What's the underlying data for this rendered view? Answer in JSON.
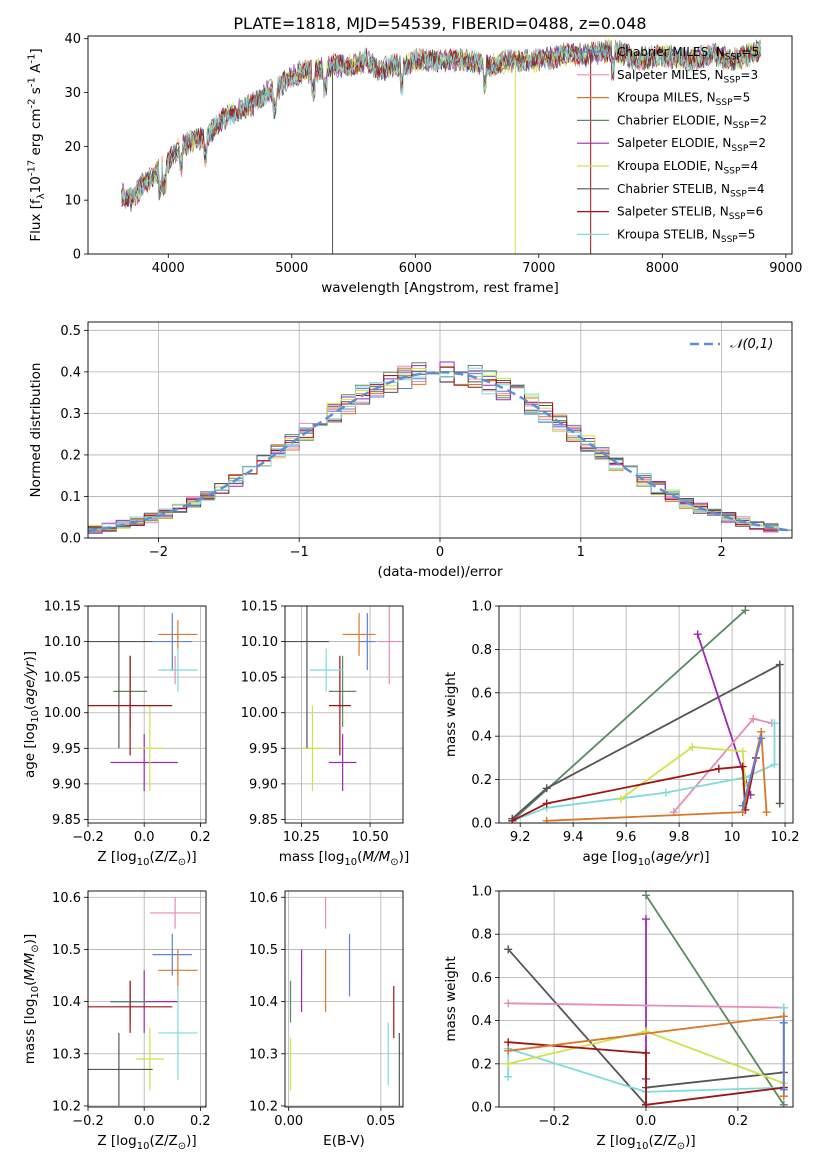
{
  "figure": {
    "title": "PLATE=1818, MJD=54539, FIBERID=0488, z=0.048",
    "colors": {
      "chabrier_miles": "#5b82d6",
      "salpeter_miles": "#e58cb8",
      "kroupa_miles": "#d9782a",
      "chabrier_elodie": "#5a8a62",
      "salpeter_elodie": "#9a2bb0",
      "kroupa_elodie": "#cfe24a",
      "chabrier_stelib": "#555555",
      "salpeter_stelib": "#a01414",
      "kroupa_stelib": "#7fdbdb",
      "normal": "#5b8fd6"
    }
  },
  "chart_data": [
    {
      "id": "spectrum",
      "type": "line",
      "title": "PLATE=1818, MJD=54539, FIBERID=0488, z=0.048",
      "xlabel": "wavelength [Angstrom, rest frame]",
      "ylabel": "Flux [f$_\\lambda$10$^{-17}$ erg cm$^{-2}$ s$^{-1}$ A$^{-1}$]",
      "xlim": [
        3350,
        9050
      ],
      "ylim": [
        0,
        40.5
      ],
      "xticks": [
        4000,
        5000,
        6000,
        7000,
        8000,
        9000
      ],
      "yticks": [
        0,
        10,
        20,
        30,
        40
      ],
      "grid": false,
      "legend_position": "right",
      "x": [
        3620,
        3700,
        3800,
        3900,
        4000,
        4100,
        4200,
        4300,
        4400,
        4500,
        4600,
        4700,
        4800,
        4900,
        5000,
        5100,
        5200,
        5300,
        5400,
        5500,
        5600,
        5700,
        5800,
        5900,
        6000,
        6200,
        6400,
        6600,
        6800,
        7000,
        7200,
        7400,
        7600,
        7800,
        8000,
        8200,
        8400,
        8600,
        8800
      ],
      "y": [
        11,
        10,
        13,
        15,
        17,
        20,
        21,
        22,
        24,
        26,
        27,
        28,
        30,
        31,
        33,
        34,
        34,
        35,
        35,
        35,
        36,
        34,
        35,
        35,
        36,
        36,
        36,
        35,
        36,
        36,
        37,
        37,
        38,
        36,
        37,
        36,
        37,
        36,
        38
      ],
      "series": [
        {
          "name": "Chabrier MILES, N$_{SSP}$=5",
          "color": "#5b82d6"
        },
        {
          "name": "Salpeter MILES, N$_{SSP}$=3",
          "color": "#e58cb8"
        },
        {
          "name": "Kroupa MILES, N$_{SSP}$=5",
          "color": "#d9782a"
        },
        {
          "name": "Chabrier ELODIE, N$_{SSP}$=2",
          "color": "#5a8a62"
        },
        {
          "name": "Salpeter ELODIE, N$_{SSP}$=2",
          "color": "#9a2bb0"
        },
        {
          "name": "Kroupa ELODIE, N$_{SSP}$=4",
          "color": "#cfe24a"
        },
        {
          "name": "Chabrier STELIB, N$_{SSP}$=4",
          "color": "#555555"
        },
        {
          "name": "Salpeter STELIB, N$_{SSP}$=6",
          "color": "#a01414"
        },
        {
          "name": "Kroupa STELIB, N$_{SSP}$=5",
          "color": "#7fdbdb"
        }
      ],
      "dropouts": [
        {
          "x": 5330,
          "color": "#555555"
        },
        {
          "x": 6810,
          "color": "#cfe24a"
        },
        {
          "x": 7420,
          "color": "#a01414"
        }
      ]
    },
    {
      "id": "residuals",
      "type": "line",
      "xlabel": "(data-model)/error",
      "ylabel": "Normed distribution",
      "xlim": [
        -2.5,
        2.5
      ],
      "ylim": [
        0,
        0.52
      ],
      "xticks": [
        -2,
        -1,
        0,
        1,
        2
      ],
      "yticks": [
        0.0,
        0.1,
        0.2,
        0.3,
        0.4,
        0.5
      ],
      "grid": true,
      "legend_position": "top-right",
      "legend": "$\\mathcal{N}(0,1)$",
      "bin_width": 0.1,
      "noise_amplitude": 0.025
    },
    {
      "id": "age_vs_Z",
      "type": "scatter",
      "xlabel": "Z [log$_{10}$(Z/Z$_\\odot$)]",
      "ylabel": "age  [log$_{10}$($age/yr$)]",
      "xlim": [
        -0.2,
        0.22
      ],
      "ylim": [
        9.845,
        10.15
      ],
      "xticks": [
        -0.2,
        0.0,
        0.2
      ],
      "xticklabels": [
        "−0.2",
        "0.0",
        "0.2"
      ],
      "yticks": [
        9.85,
        9.9,
        9.95,
        10.0,
        10.05,
        10.1,
        10.15
      ],
      "grid": true,
      "points": [
        {
          "x": 0.1,
          "y": 10.1,
          "xerr": 0.07,
          "yerr": 0.04,
          "color": "#5b82d6"
        },
        {
          "x": 0.11,
          "y": 10.06,
          "xerr": 0.02,
          "yerr": 0.02,
          "color": "#e58cb8"
        },
        {
          "x": 0.12,
          "y": 10.11,
          "xerr": 0.07,
          "yerr": 0.02,
          "color": "#d9782a"
        },
        {
          "x": -0.05,
          "y": 10.03,
          "xerr": 0.06,
          "yerr": 0.05,
          "color": "#5a8a62"
        },
        {
          "x": 0.0,
          "y": 9.93,
          "xerr": 0.12,
          "yerr": 0.04,
          "color": "#9a2bb0"
        },
        {
          "x": 0.02,
          "y": 9.95,
          "xerr": 0.05,
          "yerr": 0.06,
          "color": "#cfe24a"
        },
        {
          "x": -0.09,
          "y": 10.1,
          "xerr": 0.12,
          "yerr": 0.15,
          "color": "#555555"
        },
        {
          "x": -0.05,
          "y": 10.01,
          "xerr": 0.15,
          "yerr": 0.07,
          "color": "#a01414"
        },
        {
          "x": 0.12,
          "y": 10.06,
          "xerr": 0.07,
          "yerr": 0.03,
          "color": "#7fdbdb"
        }
      ]
    },
    {
      "id": "age_vs_mass",
      "type": "scatter",
      "xlabel": "mass [log$_{10}$($M/M_\\odot$)]",
      "ylabel": "",
      "xlim": [
        10.19,
        10.62
      ],
      "ylim": [
        9.845,
        10.15
      ],
      "xticks": [
        10.25,
        10.5
      ],
      "xticklabels": [
        "10.25",
        "10.50"
      ],
      "yticks": [
        9.85,
        9.9,
        9.95,
        10.0,
        10.05,
        10.1,
        10.15
      ],
      "grid": true,
      "points": [
        {
          "x": 10.49,
          "y": 10.1,
          "xerr": 0.03,
          "yerr": 0.04,
          "color": "#5b82d6"
        },
        {
          "x": 10.57,
          "y": 10.1,
          "xerr": 0.04,
          "yerr": 0.06,
          "color": "#e58cb8"
        },
        {
          "x": 10.46,
          "y": 10.11,
          "xerr": 0.06,
          "yerr": 0.03,
          "color": "#d9782a"
        },
        {
          "x": 10.4,
          "y": 10.03,
          "xerr": 0.05,
          "yerr": 0.05,
          "color": "#5a8a62"
        },
        {
          "x": 10.4,
          "y": 9.93,
          "xerr": 0.05,
          "yerr": 0.04,
          "color": "#9a2bb0"
        },
        {
          "x": 10.29,
          "y": 9.95,
          "xerr": 0.05,
          "yerr": 0.06,
          "color": "#cfe24a"
        },
        {
          "x": 10.27,
          "y": 10.1,
          "xerr": 0.08,
          "yerr": 0.15,
          "color": "#555555"
        },
        {
          "x": 10.39,
          "y": 10.01,
          "xerr": 0.04,
          "yerr": 0.07,
          "color": "#a01414"
        },
        {
          "x": 10.34,
          "y": 10.06,
          "xerr": 0.06,
          "yerr": 0.03,
          "color": "#7fdbdb"
        }
      ]
    },
    {
      "id": "massweight_vs_age",
      "type": "line",
      "xlabel": "age  [log$_{10}$($age/yr$)]",
      "ylabel": "mass weight",
      "xlim": [
        9.12,
        10.23
      ],
      "ylim": [
        0,
        1.0
      ],
      "xticks": [
        9.2,
        9.4,
        9.6,
        9.8,
        10.0,
        10.2
      ],
      "yticks": [
        0.0,
        0.2,
        0.4,
        0.6,
        0.8,
        1.0
      ],
      "grid": true,
      "series": [
        {
          "color": "#5a8a62",
          "points": [
            [
              9.17,
              0.01
            ],
            [
              10.05,
              0.98
            ]
          ]
        },
        {
          "color": "#555555",
          "points": [
            [
              9.17,
              0.02
            ],
            [
              9.3,
              0.16
            ],
            [
              10.18,
              0.73
            ],
            [
              10.18,
              0.09
            ]
          ]
        },
        {
          "color": "#9a2bb0",
          "points": [
            [
              9.87,
              0.87
            ],
            [
              10.07,
              0.13
            ]
          ]
        },
        {
          "color": "#e58cb8",
          "points": [
            [
              9.78,
              0.05
            ],
            [
              10.08,
              0.48
            ],
            [
              10.15,
              0.46
            ]
          ]
        },
        {
          "color": "#7fdbdb",
          "points": [
            [
              9.17,
              0.01
            ],
            [
              9.3,
              0.07
            ],
            [
              9.75,
              0.14
            ],
            [
              10.05,
              0.21
            ],
            [
              10.16,
              0.27
            ],
            [
              10.16,
              0.46
            ]
          ]
        },
        {
          "color": "#cfe24a",
          "points": [
            [
              9.58,
              0.11
            ],
            [
              9.85,
              0.35
            ],
            [
              10.04,
              0.33
            ],
            [
              10.05,
              0.18
            ]
          ]
        },
        {
          "color": "#a01414",
          "points": [
            [
              9.17,
              0.01
            ],
            [
              9.3,
              0.09
            ],
            [
              9.95,
              0.25
            ],
            [
              10.04,
              0.26
            ],
            [
              10.05,
              0.06
            ],
            [
              10.09,
              0.3
            ]
          ]
        },
        {
          "color": "#d9782a",
          "points": [
            [
              9.3,
              0.01
            ],
            [
              10.04,
              0.05
            ],
            [
              10.11,
              0.42
            ],
            [
              10.13,
              0.05
            ]
          ]
        },
        {
          "color": "#5b82d6",
          "points": [
            [
              10.04,
              0.08
            ],
            [
              10.11,
              0.39
            ]
          ]
        }
      ]
    },
    {
      "id": "mass_vs_Z",
      "type": "scatter",
      "xlabel": "Z [log$_{10}$(Z/Z$_\\odot$)]",
      "ylabel": "mass [log$_{10}$($M/M_\\odot$)]",
      "xlim": [
        -0.2,
        0.22
      ],
      "ylim": [
        10.198,
        10.612
      ],
      "xticks": [
        -0.2,
        0.0,
        0.2
      ],
      "xticklabels": [
        "−0.2",
        "0.0",
        "0.2"
      ],
      "yticks": [
        10.2,
        10.3,
        10.4,
        10.5,
        10.6
      ],
      "grid": true,
      "points": [
        {
          "x": 0.11,
          "y": 10.57,
          "xerr": 0.09,
          "yerr": 0.03,
          "color": "#e58cb8"
        },
        {
          "x": 0.1,
          "y": 10.49,
          "xerr": 0.07,
          "yerr": 0.04,
          "color": "#5b82d6"
        },
        {
          "x": 0.12,
          "y": 10.46,
          "xerr": 0.07,
          "yerr": 0.04,
          "color": "#d9782a"
        },
        {
          "x": 0.0,
          "y": 10.4,
          "xerr": 0.12,
          "yerr": 0.06,
          "color": "#9a2bb0"
        },
        {
          "x": -0.05,
          "y": 10.4,
          "xerr": 0.06,
          "yerr": 0.04,
          "color": "#5a8a62"
        },
        {
          "x": -0.05,
          "y": 10.39,
          "xerr": 0.15,
          "yerr": 0.05,
          "color": "#a01414"
        },
        {
          "x": 0.12,
          "y": 10.34,
          "xerr": 0.07,
          "yerr": 0.09,
          "color": "#7fdbdb"
        },
        {
          "x": 0.02,
          "y": 10.29,
          "xerr": 0.05,
          "yerr": 0.06,
          "color": "#cfe24a"
        },
        {
          "x": -0.09,
          "y": 10.27,
          "xerr": 0.12,
          "yerr": 0.07,
          "color": "#555555"
        }
      ]
    },
    {
      "id": "mass_vs_ebv",
      "type": "scatter",
      "xlabel": "E(B-V)",
      "ylabel": "",
      "xlim": [
        -0.002,
        0.062
      ],
      "ylim": [
        10.198,
        10.612
      ],
      "xticks": [
        0.0,
        0.05
      ],
      "xticklabels": [
        "0.00",
        "0.05"
      ],
      "yticks": [
        10.2,
        10.3,
        10.4,
        10.5,
        10.6
      ],
      "grid": true,
      "points": [
        {
          "x": 0.02,
          "y": 10.57,
          "yerr": 0.03,
          "color": "#e58cb8"
        },
        {
          "x": 0.033,
          "y": 10.47,
          "yerr": 0.06,
          "color": "#5b82d6"
        },
        {
          "x": 0.02,
          "y": 10.44,
          "yerr": 0.06,
          "color": "#d9782a"
        },
        {
          "x": 0.001,
          "y": 10.4,
          "yerr": 0.04,
          "color": "#5a8a62"
        },
        {
          "x": 0.007,
          "y": 10.44,
          "yerr": 0.06,
          "color": "#9a2bb0"
        },
        {
          "x": 0.057,
          "y": 10.38,
          "yerr": 0.05,
          "color": "#a01414"
        },
        {
          "x": 0.054,
          "y": 10.3,
          "yerr": 0.06,
          "color": "#7fdbdb"
        },
        {
          "x": 0.001,
          "y": 10.28,
          "yerr": 0.05,
          "color": "#cfe24a"
        },
        {
          "x": 0.06,
          "y": 10.27,
          "yerr": 0.07,
          "color": "#555555"
        }
      ]
    },
    {
      "id": "massweight_vs_Z",
      "type": "line",
      "xlabel": "Z [log$_{10}$(Z/Z$_\\odot$)]",
      "ylabel": "mass weight",
      "xlim": [
        -0.32,
        0.32
      ],
      "ylim": [
        0,
        1.0
      ],
      "xticks": [
        -0.2,
        0.0,
        0.2
      ],
      "xticklabels": [
        "−0.2",
        "0.0",
        "0.2"
      ],
      "yticks": [
        0.0,
        0.2,
        0.4,
        0.6,
        0.8,
        1.0
      ],
      "grid": true,
      "series": [
        {
          "color": "#5a8a62",
          "points": [
            [
              0.0,
              0.98
            ],
            [
              0.3,
              0.01
            ]
          ]
        },
        {
          "color": "#555555",
          "points": [
            [
              -0.3,
              0.73
            ],
            [
              0.0,
              0.01
            ],
            [
              0.0,
              0.09
            ],
            [
              0.3,
              0.16
            ]
          ]
        },
        {
          "color": "#9a2bb0",
          "points": [
            [
              0.0,
              0.87
            ],
            [
              0.0,
              0.13
            ]
          ]
        },
        {
          "color": "#e58cb8",
          "points": [
            [
              -0.3,
              0.48
            ],
            [
              0.3,
              0.46
            ],
            [
              0.3,
              0.05
            ]
          ]
        },
        {
          "color": "#7fdbdb",
          "points": [
            [
              -0.3,
              0.14
            ],
            [
              -0.3,
              0.27
            ],
            [
              0.0,
              0.07
            ],
            [
              0.3,
              0.09
            ],
            [
              0.3,
              0.46
            ]
          ]
        },
        {
          "color": "#cfe24a",
          "points": [
            [
              -0.3,
              0.2
            ],
            [
              0.0,
              0.35
            ],
            [
              0.3,
              0.11
            ]
          ]
        },
        {
          "color": "#a01414",
          "points": [
            [
              -0.3,
              0.3
            ],
            [
              0.0,
              0.25
            ],
            [
              0.0,
              0.01
            ],
            [
              0.3,
              0.09
            ]
          ]
        },
        {
          "color": "#d9782a",
          "points": [
            [
              -0.3,
              0.26
            ],
            [
              0.3,
              0.42
            ],
            [
              0.3,
              0.05
            ]
          ]
        },
        {
          "color": "#5b82d6",
          "points": [
            [
              0.3,
              0.08
            ],
            [
              0.3,
              0.39
            ]
          ]
        }
      ]
    }
  ]
}
